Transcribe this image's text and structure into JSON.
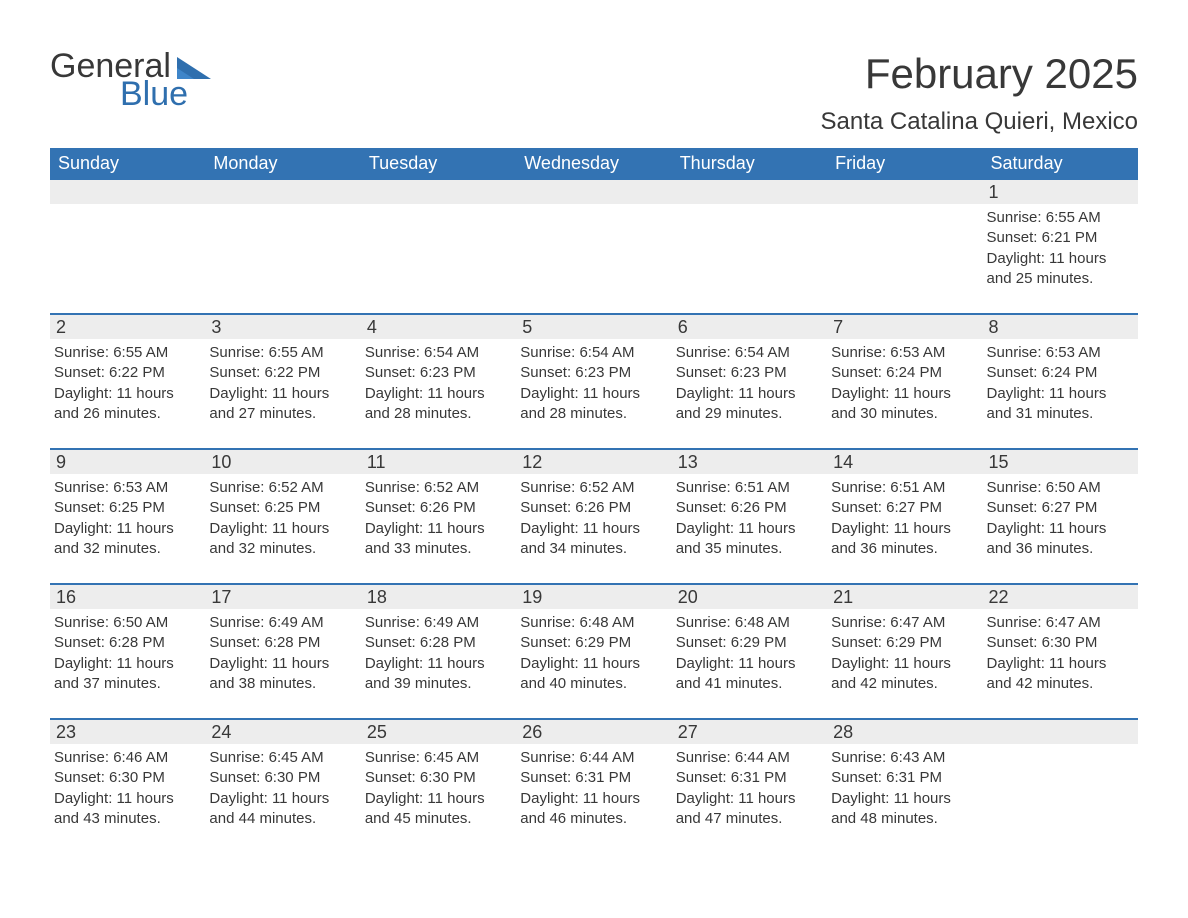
{
  "logo": {
    "general": "General",
    "blue": "Blue",
    "brand_color": "#2F6FAE",
    "text_color": "#383838"
  },
  "title": {
    "month": "February 2025",
    "location": "Santa Catalina Quieri, Mexico"
  },
  "colors": {
    "header_bg": "#3373B3",
    "header_fg": "#ffffff",
    "row_accent": "#3373B3",
    "daynum_bg": "#EDEDED",
    "body_text": "#383838",
    "page_bg": "#ffffff"
  },
  "day_names": [
    "Sunday",
    "Monday",
    "Tuesday",
    "Wednesday",
    "Thursday",
    "Friday",
    "Saturday"
  ],
  "weeks": [
    [
      {
        "blank": true
      },
      {
        "blank": true
      },
      {
        "blank": true
      },
      {
        "blank": true
      },
      {
        "blank": true
      },
      {
        "blank": true
      },
      {
        "day": "1",
        "sunrise": "Sunrise: 6:55 AM",
        "sunset": "Sunset: 6:21 PM",
        "daylight1": "Daylight: 11 hours",
        "daylight2": "and 25 minutes."
      }
    ],
    [
      {
        "day": "2",
        "sunrise": "Sunrise: 6:55 AM",
        "sunset": "Sunset: 6:22 PM",
        "daylight1": "Daylight: 11 hours",
        "daylight2": "and 26 minutes."
      },
      {
        "day": "3",
        "sunrise": "Sunrise: 6:55 AM",
        "sunset": "Sunset: 6:22 PM",
        "daylight1": "Daylight: 11 hours",
        "daylight2": "and 27 minutes."
      },
      {
        "day": "4",
        "sunrise": "Sunrise: 6:54 AM",
        "sunset": "Sunset: 6:23 PM",
        "daylight1": "Daylight: 11 hours",
        "daylight2": "and 28 minutes."
      },
      {
        "day": "5",
        "sunrise": "Sunrise: 6:54 AM",
        "sunset": "Sunset: 6:23 PM",
        "daylight1": "Daylight: 11 hours",
        "daylight2": "and 28 minutes."
      },
      {
        "day": "6",
        "sunrise": "Sunrise: 6:54 AM",
        "sunset": "Sunset: 6:23 PM",
        "daylight1": "Daylight: 11 hours",
        "daylight2": "and 29 minutes."
      },
      {
        "day": "7",
        "sunrise": "Sunrise: 6:53 AM",
        "sunset": "Sunset: 6:24 PM",
        "daylight1": "Daylight: 11 hours",
        "daylight2": "and 30 minutes."
      },
      {
        "day": "8",
        "sunrise": "Sunrise: 6:53 AM",
        "sunset": "Sunset: 6:24 PM",
        "daylight1": "Daylight: 11 hours",
        "daylight2": "and 31 minutes."
      }
    ],
    [
      {
        "day": "9",
        "sunrise": "Sunrise: 6:53 AM",
        "sunset": "Sunset: 6:25 PM",
        "daylight1": "Daylight: 11 hours",
        "daylight2": "and 32 minutes."
      },
      {
        "day": "10",
        "sunrise": "Sunrise: 6:52 AM",
        "sunset": "Sunset: 6:25 PM",
        "daylight1": "Daylight: 11 hours",
        "daylight2": "and 32 minutes."
      },
      {
        "day": "11",
        "sunrise": "Sunrise: 6:52 AM",
        "sunset": "Sunset: 6:26 PM",
        "daylight1": "Daylight: 11 hours",
        "daylight2": "and 33 minutes."
      },
      {
        "day": "12",
        "sunrise": "Sunrise: 6:52 AM",
        "sunset": "Sunset: 6:26 PM",
        "daylight1": "Daylight: 11 hours",
        "daylight2": "and 34 minutes."
      },
      {
        "day": "13",
        "sunrise": "Sunrise: 6:51 AM",
        "sunset": "Sunset: 6:26 PM",
        "daylight1": "Daylight: 11 hours",
        "daylight2": "and 35 minutes."
      },
      {
        "day": "14",
        "sunrise": "Sunrise: 6:51 AM",
        "sunset": "Sunset: 6:27 PM",
        "daylight1": "Daylight: 11 hours",
        "daylight2": "and 36 minutes."
      },
      {
        "day": "15",
        "sunrise": "Sunrise: 6:50 AM",
        "sunset": "Sunset: 6:27 PM",
        "daylight1": "Daylight: 11 hours",
        "daylight2": "and 36 minutes."
      }
    ],
    [
      {
        "day": "16",
        "sunrise": "Sunrise: 6:50 AM",
        "sunset": "Sunset: 6:28 PM",
        "daylight1": "Daylight: 11 hours",
        "daylight2": "and 37 minutes."
      },
      {
        "day": "17",
        "sunrise": "Sunrise: 6:49 AM",
        "sunset": "Sunset: 6:28 PM",
        "daylight1": "Daylight: 11 hours",
        "daylight2": "and 38 minutes."
      },
      {
        "day": "18",
        "sunrise": "Sunrise: 6:49 AM",
        "sunset": "Sunset: 6:28 PM",
        "daylight1": "Daylight: 11 hours",
        "daylight2": "and 39 minutes."
      },
      {
        "day": "19",
        "sunrise": "Sunrise: 6:48 AM",
        "sunset": "Sunset: 6:29 PM",
        "daylight1": "Daylight: 11 hours",
        "daylight2": "and 40 minutes."
      },
      {
        "day": "20",
        "sunrise": "Sunrise: 6:48 AM",
        "sunset": "Sunset: 6:29 PM",
        "daylight1": "Daylight: 11 hours",
        "daylight2": "and 41 minutes."
      },
      {
        "day": "21",
        "sunrise": "Sunrise: 6:47 AM",
        "sunset": "Sunset: 6:29 PM",
        "daylight1": "Daylight: 11 hours",
        "daylight2": "and 42 minutes."
      },
      {
        "day": "22",
        "sunrise": "Sunrise: 6:47 AM",
        "sunset": "Sunset: 6:30 PM",
        "daylight1": "Daylight: 11 hours",
        "daylight2": "and 42 minutes."
      }
    ],
    [
      {
        "day": "23",
        "sunrise": "Sunrise: 6:46 AM",
        "sunset": "Sunset: 6:30 PM",
        "daylight1": "Daylight: 11 hours",
        "daylight2": "and 43 minutes."
      },
      {
        "day": "24",
        "sunrise": "Sunrise: 6:45 AM",
        "sunset": "Sunset: 6:30 PM",
        "daylight1": "Daylight: 11 hours",
        "daylight2": "and 44 minutes."
      },
      {
        "day": "25",
        "sunrise": "Sunrise: 6:45 AM",
        "sunset": "Sunset: 6:30 PM",
        "daylight1": "Daylight: 11 hours",
        "daylight2": "and 45 minutes."
      },
      {
        "day": "26",
        "sunrise": "Sunrise: 6:44 AM",
        "sunset": "Sunset: 6:31 PM",
        "daylight1": "Daylight: 11 hours",
        "daylight2": "and 46 minutes."
      },
      {
        "day": "27",
        "sunrise": "Sunrise: 6:44 AM",
        "sunset": "Sunset: 6:31 PM",
        "daylight1": "Daylight: 11 hours",
        "daylight2": "and 47 minutes."
      },
      {
        "day": "28",
        "sunrise": "Sunrise: 6:43 AM",
        "sunset": "Sunset: 6:31 PM",
        "daylight1": "Daylight: 11 hours",
        "daylight2": "and 48 minutes."
      },
      {
        "blank": true
      }
    ]
  ]
}
